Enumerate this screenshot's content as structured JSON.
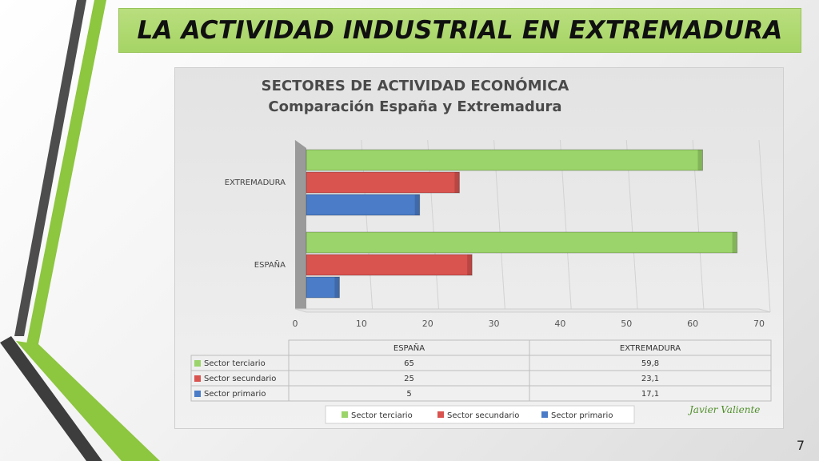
{
  "slide": {
    "title": "LA ACTIVIDAD INDUSTRIAL EN EXTREMADURA",
    "page_number": "7",
    "author": "Javier Valiente",
    "accent_colors": {
      "green": "#8dc63f",
      "dark_gray": "#4d4d4d"
    }
  },
  "chart_data": {
    "type": "bar",
    "orientation": "horizontal",
    "title": "SECTORES DE ACTIVIDAD ECONÓMICA",
    "subtitle": "Comparación España y Extremadura",
    "categories": [
      "ESPAÑA",
      "EXTREMADURA"
    ],
    "series": [
      {
        "name": "Sector terciario",
        "color": "#9bd46a",
        "values": [
          65,
          59.8
        ],
        "labels": [
          "65",
          "59,8"
        ]
      },
      {
        "name": "Sector secundario",
        "color": "#d9534f",
        "values": [
          25,
          23.1
        ],
        "labels": [
          "25",
          "23,1"
        ]
      },
      {
        "name": "Sector primario",
        "color": "#4a7cc7",
        "values": [
          5,
          17.1
        ],
        "labels": [
          "5",
          "17,1"
        ]
      }
    ],
    "xlim": [
      0,
      70
    ],
    "xticks": [
      "0",
      "10",
      "20",
      "30",
      "40",
      "50",
      "60",
      "70"
    ],
    "grid": true,
    "legend_position": "bottom",
    "data_table": true
  }
}
